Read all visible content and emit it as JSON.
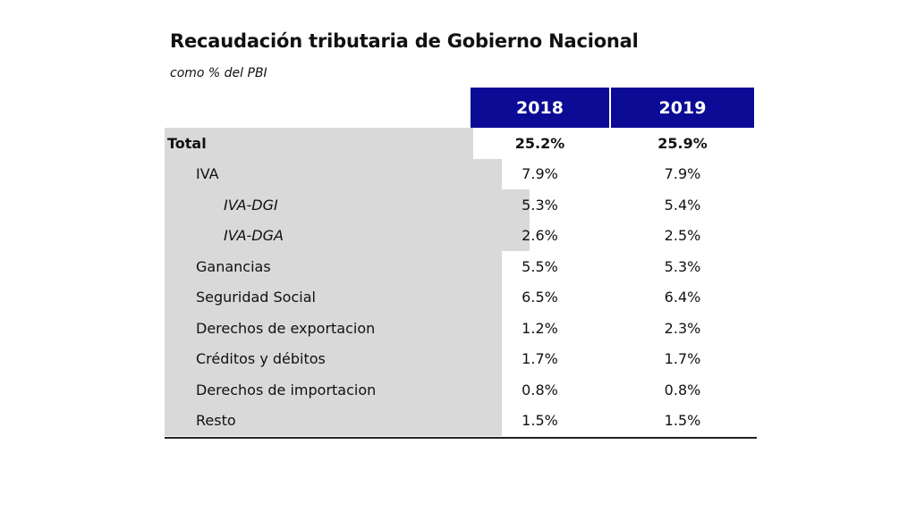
{
  "title": "Recaudación tributaria de Gobierno Nacional",
  "subtitle": "como % del PBI",
  "columns": [
    "2018",
    "2019"
  ],
  "rows": [
    {
      "label": "Total",
      "level": 0,
      "v2018": "25.2%",
      "v2019": "25.9%"
    },
    {
      "label": "IVA",
      "level": 1,
      "v2018": "7.9%",
      "v2019": "7.9%"
    },
    {
      "label": "IVA-DGI",
      "level": 2,
      "v2018": "5.3%",
      "v2019": "5.4%"
    },
    {
      "label": "IVA-DGA",
      "level": 2,
      "v2018": "2.6%",
      "v2019": "2.5%"
    },
    {
      "label": "Ganancias",
      "level": 1,
      "v2018": "5.5%",
      "v2019": "5.3%"
    },
    {
      "label": "Seguridad Social",
      "level": 1,
      "v2018": "6.5%",
      "v2019": "6.4%"
    },
    {
      "label": "Derechos de exportacion",
      "level": 1,
      "v2018": "1.2%",
      "v2019": "2.3%"
    },
    {
      "label": "Créditos y débitos",
      "level": 1,
      "v2018": "1.7%",
      "v2019": "1.7%"
    },
    {
      "label": "Derechos de importacion",
      "level": 1,
      "v2018": "0.8%",
      "v2019": "0.8%"
    },
    {
      "label": "Resto",
      "level": 1,
      "v2018": "1.5%",
      "v2019": "1.5%"
    }
  ],
  "colors": {
    "header_bg": "#0b0b96",
    "header_text": "#ffffff",
    "label_bg": "#d9d9d9"
  }
}
